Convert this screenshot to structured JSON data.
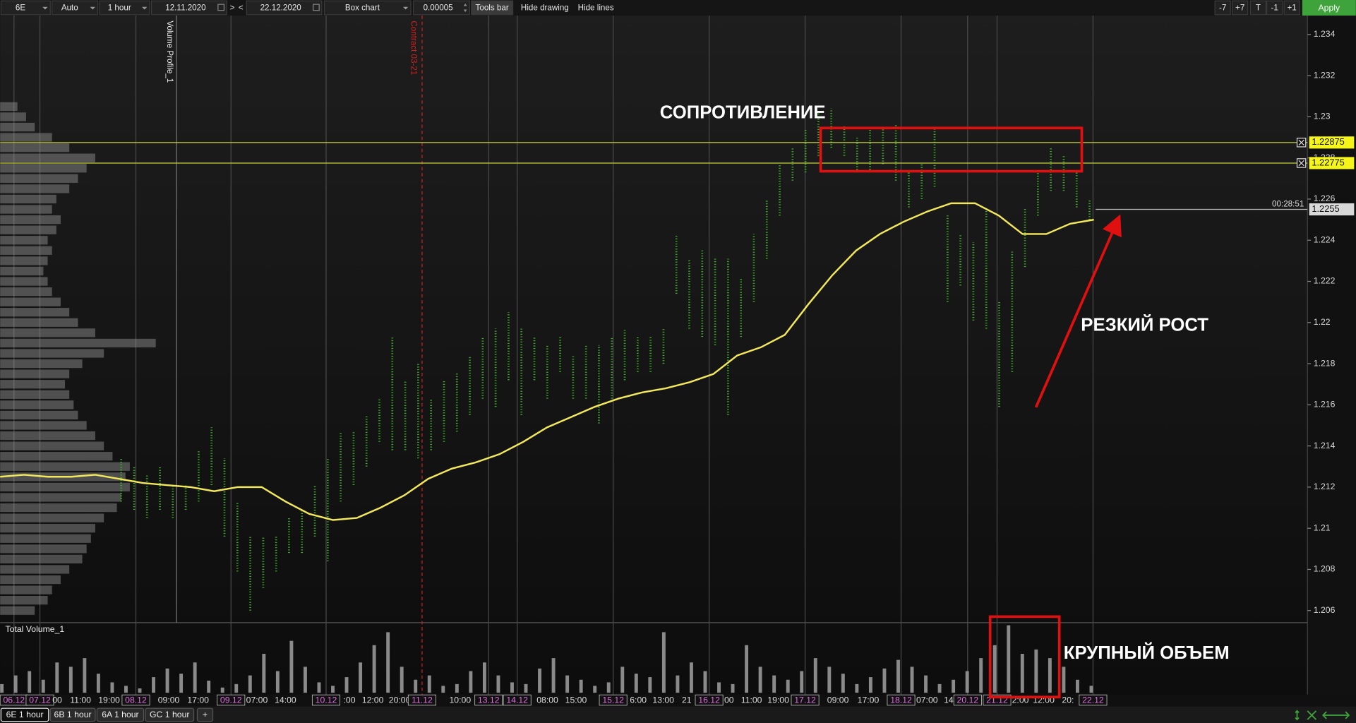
{
  "toolbar": {
    "symbol": "6E",
    "scale": "Auto",
    "period": "1 hour",
    "date_from": "12.11.2020",
    "nav_next": ">",
    "nav_prev": "<",
    "date_to": "22.12.2020",
    "chart_type": "Box chart",
    "tick_size": "0.00005",
    "tools_bar": "Tools bar",
    "hide_drawing": "Hide drawing",
    "hide_lines": "Hide lines",
    "right_buttons": [
      "-7",
      "+7",
      "T",
      "-1",
      "+1"
    ],
    "apply": "Apply"
  },
  "chart_data": {
    "type": "box",
    "ylim": [
      1.20541,
      1.23492
    ],
    "yticks": [
      1.206,
      1.208,
      1.21,
      1.212,
      1.214,
      1.216,
      1.218,
      1.22,
      1.222,
      1.224,
      1.226,
      1.228,
      1.23,
      1.232,
      1.234
    ],
    "x_labels": [
      "06.12",
      "07.12",
      "00",
      "11:00",
      "19:00",
      "08.12",
      "09:00",
      "17:00",
      "09.12",
      "07:00",
      "14:00",
      "10.12",
      ":00",
      "12:00",
      "20:00",
      "11.12",
      "10:00",
      "13.12",
      "14.12",
      "08:00",
      "15:00",
      "15.12",
      "6:00",
      "13:00",
      "21",
      "16.12",
      "00",
      "11:00",
      "19:00",
      "17.12",
      "09:00",
      "17:00",
      "18.12",
      "07:00",
      "14",
      "20.12",
      "21.12",
      "2:00",
      "12:00",
      "20:",
      "22.12"
    ],
    "color": "#3fae2a",
    "lows": [
      1.2113,
      1.2109,
      1.2105,
      1.2109,
      1.2105,
      1.2109,
      1.2113,
      1.2121,
      1.2096,
      1.2079,
      1.206,
      1.2071,
      1.2079,
      1.2088,
      1.2088,
      1.2096,
      1.2084,
      1.2113,
      1.2121,
      1.213,
      1.2142,
      1.2138,
      1.2138,
      1.2134,
      1.2138,
      1.2142,
      1.2147,
      1.2155,
      1.2163,
      1.2159,
      1.2172,
      1.2155,
      1.2172,
      1.2163,
      1.2176,
      1.2163,
      1.2163,
      1.2151,
      1.2163,
      1.2172,
      1.2176,
      1.2176,
      1.218,
      1.2214,
      1.2197,
      1.2193,
      1.2189,
      1.2155,
      1.2193,
      1.221,
      1.2231,
      1.2252,
      1.2269,
      1.2273,
      1.2281,
      1.2285,
      1.2281,
      1.2273,
      1.2273,
      1.2277,
      1.2269,
      1.2256,
      1.226,
      1.2266,
      1.221,
      1.2218,
      1.2201,
      1.2197,
      1.2159,
      1.2176,
      1.2227,
      1.2252,
      1.2264,
      1.2264,
      1.2256,
      1.225
    ],
    "highs": [
      1.2134,
      1.213,
      1.2126,
      1.213,
      1.2121,
      1.2121,
      1.2138,
      1.2149,
      1.2134,
      1.2113,
      1.2096,
      1.2096,
      1.2096,
      1.2105,
      1.2109,
      1.2121,
      1.2134,
      1.2147,
      1.2147,
      1.2155,
      1.2163,
      1.2193,
      1.2172,
      1.218,
      1.2163,
      1.2172,
      1.2176,
      1.2184,
      1.2193,
      1.2197,
      1.2205,
      1.2197,
      1.2193,
      1.2189,
      1.2193,
      1.2184,
      1.2189,
      1.2189,
      1.2193,
      1.2197,
      1.2193,
      1.2193,
      1.2197,
      1.2243,
      1.2231,
      1.2235,
      1.2231,
      1.2231,
      1.2222,
      1.2243,
      1.226,
      1.2277,
      1.2285,
      1.2294,
      1.2302,
      1.2304,
      1.2296,
      1.229,
      1.2294,
      1.2294,
      1.2296,
      1.2273,
      1.2277,
      1.2294,
      1.2252,
      1.2243,
      1.2239,
      1.2256,
      1.221,
      1.2235,
      1.2256,
      1.2273,
      1.2285,
      1.2281,
      1.2273,
      1.226
    ],
    "ma": {
      "color": "#f2e85a",
      "values": [
        1.2125,
        1.2126,
        1.2125,
        1.2125,
        1.2126,
        1.2124,
        1.2122,
        1.2121,
        1.212,
        1.2118,
        1.212,
        1.212,
        1.2113,
        1.2107,
        1.2104,
        1.2105,
        1.211,
        1.2116,
        1.2124,
        1.2129,
        1.2132,
        1.2136,
        1.2142,
        1.2149,
        1.2154,
        1.2159,
        1.2163,
        1.2166,
        1.2168,
        1.2171,
        1.2175,
        1.2184,
        1.2188,
        1.2194,
        1.2209,
        1.2223,
        1.2235,
        1.2243,
        1.2249,
        1.2254,
        1.2258,
        1.2258,
        1.2252,
        1.2243,
        1.2243,
        1.2248,
        1.225
      ]
    },
    "levels": [
      1.22875,
      1.22775
    ],
    "level_color": "#c8d43c",
    "last_price": 1.2255,
    "timer": "00:28:51",
    "contract_marker": "Contract 03-21",
    "volume_profile": {
      "title": "Volume Profile_1",
      "levels": [
        1.206,
        1.2065,
        1.207,
        1.2075,
        1.208,
        1.2085,
        1.209,
        1.2095,
        1.21,
        1.2105,
        1.211,
        1.2115,
        1.212,
        1.2125,
        1.213,
        1.2135,
        1.214,
        1.2145,
        1.215,
        1.2155,
        1.216,
        1.2165,
        1.217,
        1.2175,
        1.218,
        1.2185,
        1.219,
        1.2195,
        1.22,
        1.2205,
        1.221,
        1.2215,
        1.222,
        1.2225,
        1.223,
        1.2235,
        1.224,
        1.2245,
        1.225,
        1.2255,
        1.226,
        1.2265,
        1.227,
        1.2275,
        1.228,
        1.2285,
        1.229,
        1.2295,
        1.23,
        1.2305
      ],
      "values": [
        40,
        55,
        60,
        70,
        80,
        95,
        100,
        105,
        110,
        120,
        135,
        140,
        150,
        145,
        150,
        130,
        120,
        110,
        100,
        90,
        85,
        80,
        75,
        80,
        95,
        120,
        180,
        110,
        90,
        80,
        70,
        60,
        55,
        50,
        55,
        60,
        55,
        65,
        70,
        60,
        65,
        80,
        90,
        100,
        110,
        80,
        60,
        40,
        30,
        20
      ]
    },
    "volume": {
      "title": "Total Volume_1",
      "values": [
        10,
        20,
        25,
        15,
        35,
        30,
        40,
        22,
        12,
        8,
        5,
        18,
        28,
        22,
        35,
        14,
        6,
        10,
        20,
        45,
        25,
        60,
        30,
        12,
        8,
        18,
        35,
        55,
        70,
        30,
        15,
        20,
        8,
        10,
        25,
        35,
        20,
        12,
        10,
        28,
        40,
        20,
        15,
        8,
        12,
        30,
        22,
        18,
        70,
        20,
        35,
        25,
        12,
        10,
        55,
        30,
        20,
        15,
        25,
        40,
        30,
        22,
        10,
        18,
        28,
        38,
        30,
        20,
        10,
        15,
        25,
        40,
        55,
        78,
        45,
        50,
        40,
        30,
        15,
        8
      ]
    },
    "annotations": [
      "СОПРОТИВЛЕНИЕ",
      "РЕЗКИЙ РОСТ",
      "КРУПНЫЙ ОБЪЕМ"
    ]
  },
  "tabs": [
    "6E 1 hour",
    "6B 1 hour",
    "6A 1 hour",
    "GC 1 hour",
    "+"
  ]
}
